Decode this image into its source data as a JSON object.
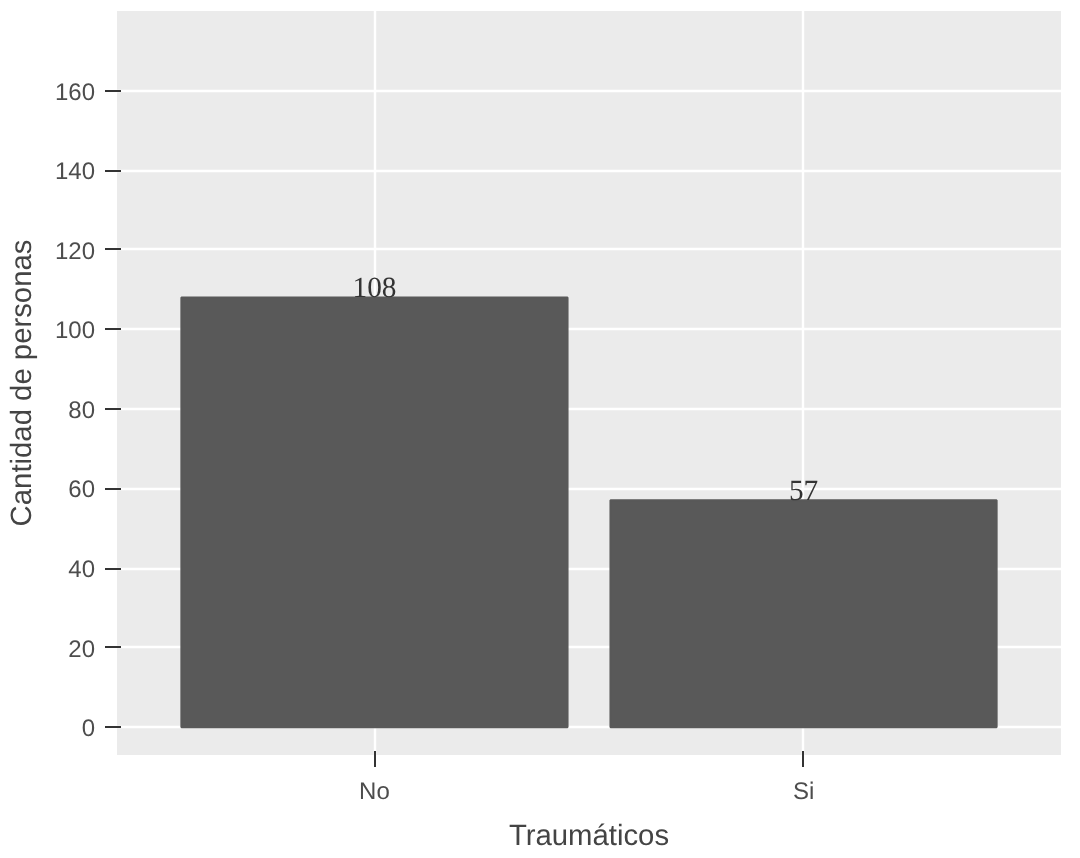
{
  "chart_data": {
    "type": "bar",
    "xlabel": "Traumáticos",
    "ylabel": "Cantidad de personas",
    "categories": [
      "No",
      "Si"
    ],
    "values": [
      108,
      57
    ],
    "color": "#595959",
    "ylim": [
      -7,
      180
    ],
    "yticks": [
      0,
      20,
      40,
      60,
      80,
      100,
      120,
      140,
      160
    ],
    "grid": true,
    "data_labels": true
  }
}
